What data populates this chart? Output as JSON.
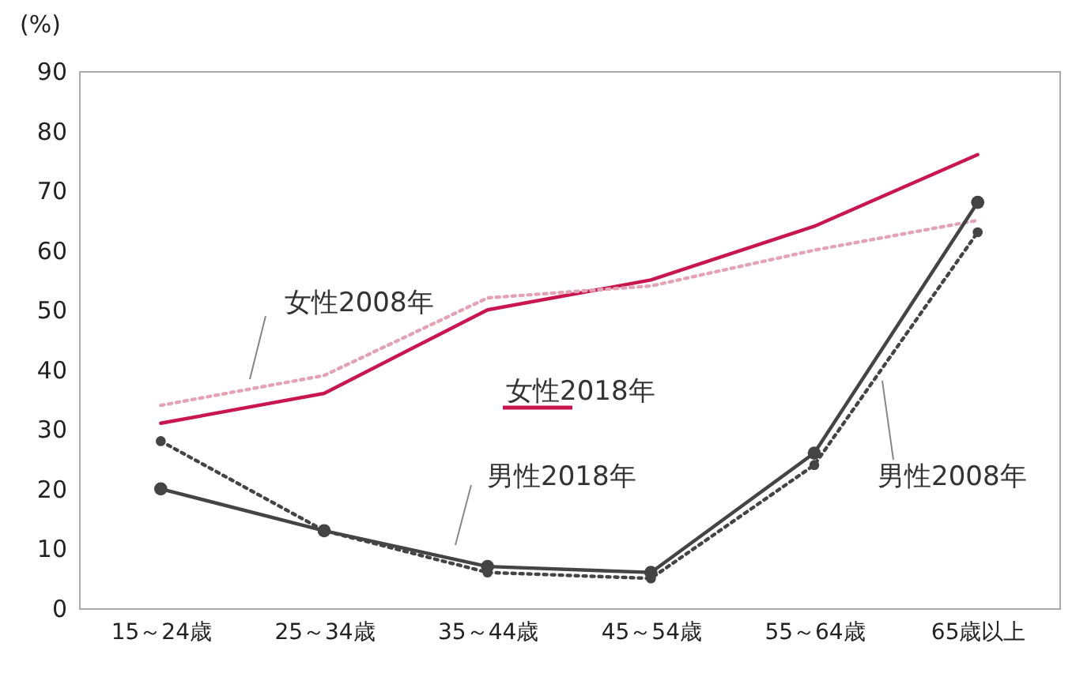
{
  "chart_data": {
    "type": "line",
    "ylabel": "(%)",
    "categories": [
      "15～24歳",
      "25～34歳",
      "35～44歳",
      "45～54歳",
      "55～64歳",
      "65歳以上"
    ],
    "ylim": [
      0,
      90
    ],
    "yticks": [
      0,
      10,
      20,
      30,
      40,
      50,
      60,
      70,
      80,
      90
    ],
    "grid": false,
    "legend": false,
    "series": [
      {
        "name": "女性2018年",
        "color": "#c8174f",
        "line_style": "solid",
        "marker": "none",
        "values": [
          31,
          36,
          50,
          55,
          64,
          76
        ]
      },
      {
        "name": "女性2008年",
        "color": "#e3a3b4",
        "line_style": "dotted",
        "marker": "none",
        "values": [
          34,
          39,
          52,
          54,
          60,
          65
        ]
      },
      {
        "name": "男性2018年",
        "color": "#444444",
        "line_style": "solid",
        "marker": "circle",
        "values": [
          20,
          13,
          7,
          6,
          26,
          68
        ]
      },
      {
        "name": "男性2008年",
        "color": "#444444",
        "line_style": "dotted",
        "marker": "circle",
        "values": [
          28,
          13,
          6,
          5,
          24,
          63
        ]
      }
    ]
  }
}
